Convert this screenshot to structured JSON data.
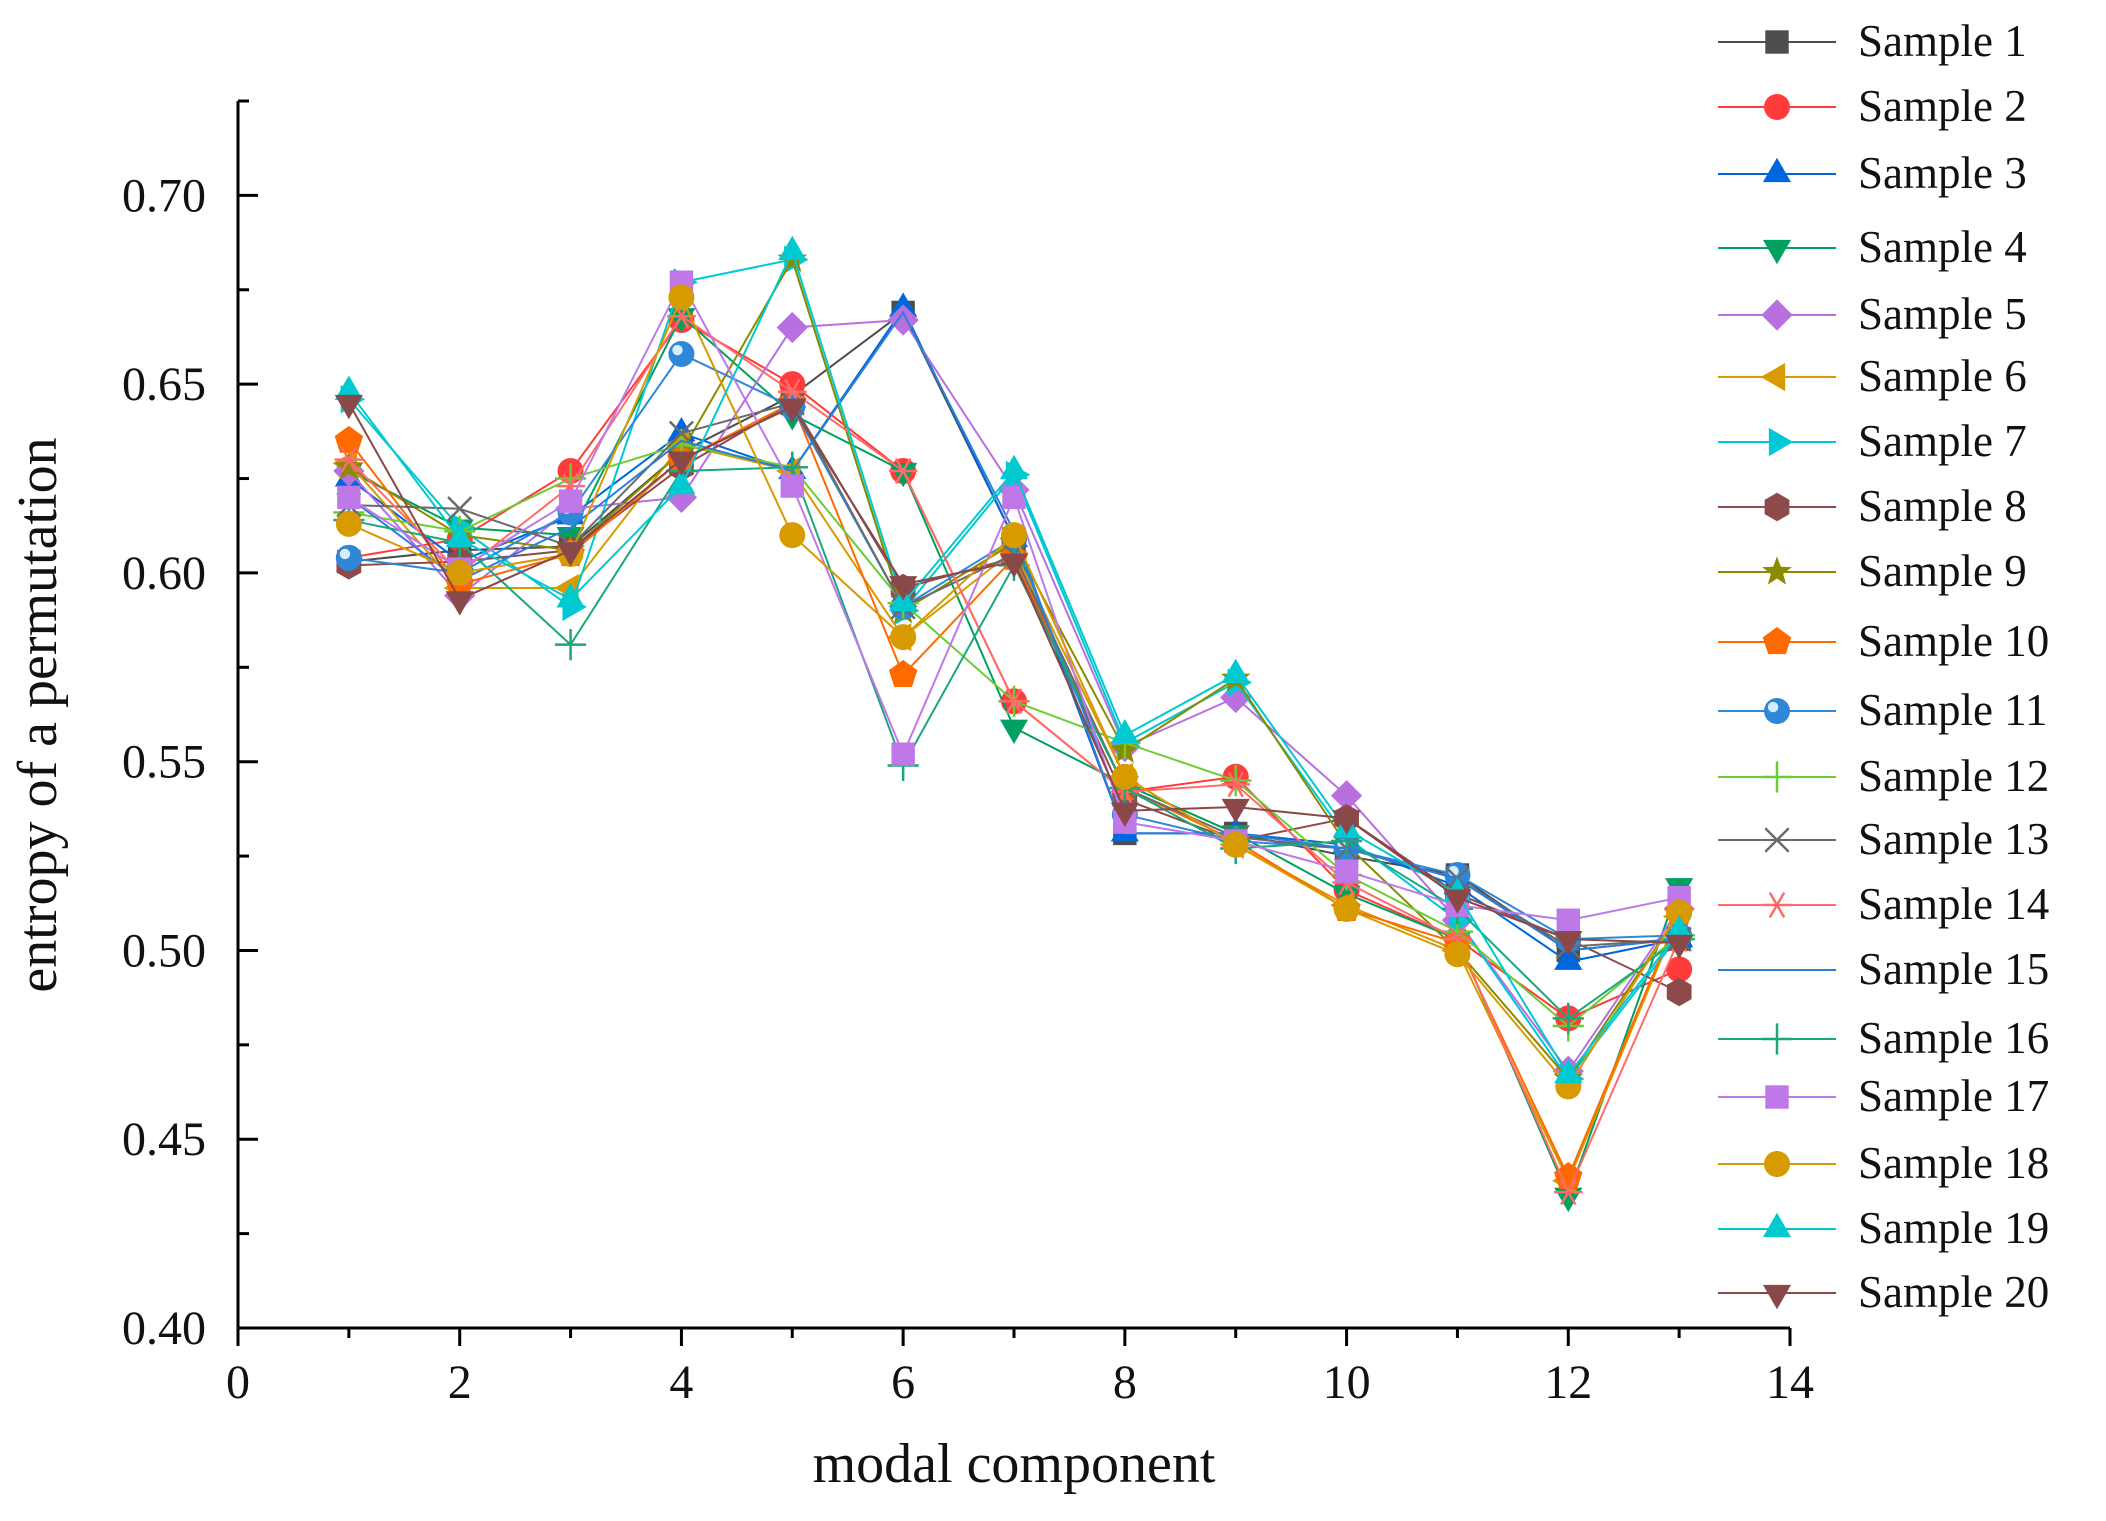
{
  "chart_data": {
    "type": "line",
    "xlabel": "modal component",
    "ylabel": "entropy of a permutation",
    "xlim": [
      0,
      14
    ],
    "ylim": [
      0.4,
      0.725
    ],
    "x_ticks": [
      0,
      2,
      4,
      6,
      8,
      10,
      12,
      14
    ],
    "x_tick_labels": [
      "0",
      "2",
      "4",
      "6",
      "8",
      "10",
      "12",
      "14"
    ],
    "y_ticks": [
      0.4,
      0.45,
      0.5,
      0.55,
      0.6,
      0.65,
      0.7
    ],
    "y_tick_labels": [
      "0.40",
      "0.45",
      "0.50",
      "0.55",
      "0.60",
      "0.65",
      "0.70"
    ],
    "grid": false,
    "legend_position": "right",
    "x": [
      1,
      2,
      3,
      4,
      5,
      6,
      7,
      8,
      9,
      10,
      11,
      12,
      13
    ],
    "series": [
      {
        "name": "Sample 1",
        "color": "#4d4d4d",
        "marker": "square",
        "values": [
          0.603,
          0.606,
          0.607,
          0.632,
          0.647,
          0.669,
          0.609,
          0.531,
          0.531,
          0.525,
          0.52,
          0.5,
          0.503
        ]
      },
      {
        "name": "Sample 2",
        "color": "#ff3b3b",
        "marker": "circle",
        "values": [
          0.604,
          0.609,
          0.627,
          0.667,
          0.65,
          0.627,
          0.566,
          0.542,
          0.546,
          0.516,
          0.503,
          0.482,
          0.495
        ]
      },
      {
        "name": "Sample 3",
        "color": "#0066dd",
        "marker": "triangle-up",
        "values": [
          0.625,
          0.603,
          0.615,
          0.637,
          0.627,
          0.67,
          0.609,
          0.531,
          0.531,
          0.528,
          0.517,
          0.497,
          0.503
        ]
      },
      {
        "name": "Sample 4",
        "color": "#00a060",
        "marker": "triangle-down",
        "values": [
          0.627,
          0.612,
          0.61,
          0.668,
          0.642,
          0.627,
          0.559,
          0.544,
          0.531,
          0.515,
          0.503,
          0.435,
          0.517
        ]
      },
      {
        "name": "Sample 5",
        "color": "#b86fe0",
        "marker": "diamond",
        "values": [
          0.627,
          0.594,
          0.617,
          0.62,
          0.665,
          0.667,
          0.622,
          0.554,
          0.567,
          0.541,
          0.508,
          0.468,
          0.511
        ]
      },
      {
        "name": "Sample 6",
        "color": "#d99a00",
        "marker": "triangle-left",
        "values": [
          0.629,
          0.596,
          0.596,
          0.634,
          0.627,
          0.583,
          0.606,
          0.546,
          0.528,
          0.512,
          0.5,
          0.439,
          0.509
        ]
      },
      {
        "name": "Sample 7",
        "color": "#00c8d6",
        "marker": "triangle-right",
        "values": [
          0.646,
          0.612,
          0.591,
          0.677,
          0.683,
          0.59,
          0.626,
          0.555,
          0.571,
          0.53,
          0.508,
          0.466,
          0.504
        ]
      },
      {
        "name": "Sample 8",
        "color": "#8c4a4a",
        "marker": "hexagon",
        "values": [
          0.602,
          0.603,
          0.606,
          0.628,
          0.645,
          0.596,
          0.604,
          0.54,
          0.529,
          0.535,
          0.515,
          0.503,
          0.489
        ]
      },
      {
        "name": "Sample 9",
        "color": "#8b8b00",
        "marker": "star",
        "values": [
          0.628,
          0.61,
          0.606,
          0.632,
          0.683,
          0.59,
          0.608,
          0.553,
          0.572,
          0.528,
          0.5,
          0.466,
          0.51
        ]
      },
      {
        "name": "Sample 10",
        "color": "#ff6a00",
        "marker": "pentagon",
        "values": [
          0.635,
          0.597,
          0.605,
          0.63,
          0.645,
          0.573,
          0.604,
          0.543,
          0.529,
          0.511,
          0.502,
          0.44,
          0.51
        ]
      },
      {
        "name": "Sample 11",
        "color": "#2f87d8",
        "marker": "sphere",
        "values": [
          0.604,
          0.6,
          0.616,
          0.658,
          0.644,
          0.591,
          0.609,
          0.536,
          0.529,
          0.527,
          0.52,
          0.503,
          0.504
        ]
      },
      {
        "name": "Sample 12",
        "color": "#6ccc35",
        "marker": "plus",
        "values": [
          0.616,
          0.611,
          0.625,
          0.634,
          0.628,
          0.592,
          0.566,
          0.555,
          0.545,
          0.52,
          0.505,
          0.48,
          0.504
        ]
      },
      {
        "name": "Sample 13",
        "color": "#6b6b6b",
        "marker": "x",
        "values": [
          0.618,
          0.617,
          0.607,
          0.637,
          0.645,
          0.591,
          0.605,
          0.543,
          0.53,
          0.527,
          0.519,
          0.501,
          0.503
        ]
      },
      {
        "name": "Sample 14",
        "color": "#ff6b6b",
        "marker": "asterisk",
        "values": [
          0.63,
          0.6,
          0.623,
          0.668,
          0.648,
          0.627,
          0.566,
          0.542,
          0.544,
          0.518,
          0.503,
          0.436,
          0.503
        ]
      },
      {
        "name": "Sample 15",
        "color": "#2c7fd8",
        "marker": "none",
        "values": [
          0.62,
          0.598,
          0.612,
          0.635,
          0.627,
          0.669,
          0.611,
          0.531,
          0.531,
          0.527,
          0.519,
          0.5,
          0.503
        ]
      },
      {
        "name": "Sample 16",
        "color": "#1ba77e",
        "marker": "plus",
        "values": [
          0.614,
          0.608,
          0.581,
          0.627,
          0.628,
          0.549,
          0.602,
          0.543,
          0.527,
          0.529,
          0.511,
          0.482,
          0.503
        ]
      },
      {
        "name": "Sample 17",
        "color": "#bf78e8",
        "marker": "square",
        "values": [
          0.62,
          0.601,
          0.619,
          0.677,
          0.623,
          0.552,
          0.62,
          0.534,
          0.529,
          0.521,
          0.512,
          0.508,
          0.514
        ]
      },
      {
        "name": "Sample 18",
        "color": "#d79a00",
        "marker": "circle",
        "values": [
          0.613,
          0.6,
          0.605,
          0.673,
          0.61,
          0.583,
          0.61,
          0.546,
          0.528,
          0.511,
          0.499,
          0.464,
          0.51
        ]
      },
      {
        "name": "Sample 19",
        "color": "#00c9cf",
        "marker": "triangle-up",
        "values": [
          0.648,
          0.609,
          0.593,
          0.623,
          0.685,
          0.592,
          0.627,
          0.557,
          0.573,
          0.532,
          0.515,
          0.467,
          0.505
        ]
      },
      {
        "name": "Sample 20",
        "color": "#8a4848",
        "marker": "triangle-down",
        "values": [
          0.645,
          0.593,
          0.606,
          0.63,
          0.644,
          0.597,
          0.603,
          0.537,
          0.538,
          0.535,
          0.514,
          0.503,
          0.502
        ]
      }
    ]
  }
}
